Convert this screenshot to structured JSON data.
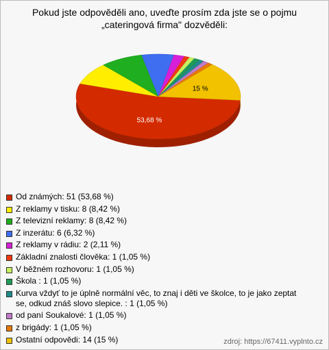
{
  "chart_data": {
    "type": "pie3d",
    "title": "Pokud jste odpověděli ano, uveďte prosím zda jste se o pojmu „cateringová firma\" dozvěděli:",
    "categories": [
      "Od známých: 51 (53,68 %)",
      "Z reklamy v tisku: 8 (8,42 %)",
      "Z televizní reklamy: 8 (8,42 %)",
      "Z inzerátu: 6 (6,32 %)",
      "Z reklamy v rádiu: 2 (2,11 %)",
      "Základní znalosti člověka: 1 (1,05 %)",
      "V běžném rozhovoru: 1 (1,05 %)",
      "Škola : 1 (1,05 %)",
      "Kurva vždyť to je úplně normální věc, to znaj i děti ve školce, to je jako zeptat se, odkud znáš slovo slepice. : 1 (1,05 %)",
      "od paní Soukalové: 1 (1,05 %)",
      "z brigády: 1 (1,05 %)",
      "Ostatní odpovědi: 14 (15 %)"
    ],
    "values": [
      53.68,
      8.42,
      8.42,
      6.32,
      2.11,
      1.05,
      1.05,
      1.05,
      1.05,
      1.05,
      1.05,
      15
    ],
    "value_labels": [
      "53,68 %",
      null,
      null,
      null,
      null,
      null,
      null,
      null,
      null,
      null,
      null,
      "15 %"
    ],
    "colors": [
      "#d42a00",
      "#ffee00",
      "#1fae1f",
      "#3f6ef0",
      "#d61fd6",
      "#f03a10",
      "#c8f060",
      "#1f9a55",
      "#218a8a",
      "#c07ac8",
      "#e8780a",
      "#f2c200"
    ],
    "source": "zdroj: https://67411.vyplnto.cz"
  }
}
